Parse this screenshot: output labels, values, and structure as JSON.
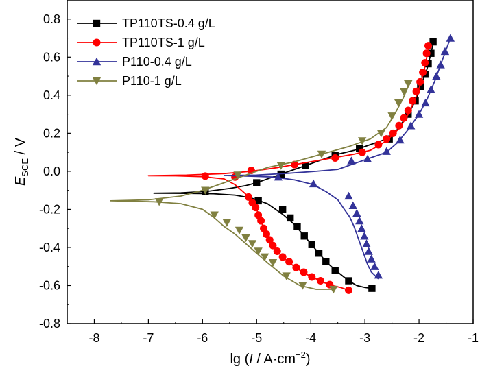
{
  "chart_data": {
    "type": "line",
    "xlabel": {
      "prefix": "lg (",
      "var": "I",
      "mid": " / A·cm",
      "sup": "−2",
      "suffix": ")"
    },
    "ylabel": {
      "main": "E",
      "sub": "SCE",
      "suffix": " / V"
    },
    "xlim": [
      -8.5,
      -1
    ],
    "ylim": [
      -0.8,
      0.9
    ],
    "x_ticks": [
      -8,
      -7,
      -6,
      -5,
      -4,
      -3,
      -2,
      -1
    ],
    "y_ticks": [
      -0.8,
      -0.6,
      -0.4,
      -0.2,
      0.0,
      0.2,
      0.4,
      0.6,
      0.8
    ],
    "x_tick_labels": [
      "-8",
      "-7",
      "-6",
      "-5",
      "-4",
      "-3",
      "-2",
      "-1"
    ],
    "y_tick_labels": [
      "-0.8",
      "-0.6",
      "-0.4",
      "-0.2",
      "0.0",
      "0.2",
      "0.4",
      "0.6",
      "0.8"
    ],
    "grid": false,
    "legend_position": "top-left",
    "series": [
      {
        "name": "TP110TS-0.4 g/L",
        "color": "#000000",
        "marker": "square",
        "points": [
          [
            -2.87,
            -0.615
          ],
          [
            -3.0,
            -0.61
          ],
          [
            -3.15,
            -0.6
          ],
          [
            -3.3,
            -0.575
          ],
          [
            -3.5,
            -0.53
          ],
          [
            -3.7,
            -0.48
          ],
          [
            -3.85,
            -0.43
          ],
          [
            -4.0,
            -0.38
          ],
          [
            -4.15,
            -0.33
          ],
          [
            -4.3,
            -0.28
          ],
          [
            -4.5,
            -0.23
          ],
          [
            -4.65,
            -0.2
          ],
          [
            -4.8,
            -0.17
          ],
          [
            -4.95,
            -0.155
          ],
          [
            -5.1,
            -0.14
          ],
          [
            -5.4,
            -0.125
          ],
          [
            -5.8,
            -0.118
          ],
          [
            -6.3,
            -0.116
          ],
          [
            -6.9,
            -0.115
          ],
          [
            -6.4,
            -0.113
          ],
          [
            -5.9,
            -0.105
          ],
          [
            -5.5,
            -0.09
          ],
          [
            -5.2,
            -0.075
          ],
          [
            -5.0,
            -0.06
          ],
          [
            -4.7,
            -0.03
          ],
          [
            -4.4,
            0.0
          ],
          [
            -4.1,
            0.03
          ],
          [
            -3.8,
            0.06
          ],
          [
            -3.5,
            0.09
          ],
          [
            -3.2,
            0.11
          ],
          [
            -2.9,
            0.14
          ],
          [
            -2.6,
            0.17
          ],
          [
            -2.4,
            0.22
          ],
          [
            -2.2,
            0.3
          ],
          [
            -2.05,
            0.38
          ],
          [
            -1.95,
            0.46
          ],
          [
            -1.85,
            0.54
          ],
          [
            -1.78,
            0.62
          ],
          [
            -1.73,
            0.68
          ]
        ],
        "marker_points": [
          [
            -2.87,
            -0.615
          ],
          [
            -3.3,
            -0.575
          ],
          [
            -3.55,
            -0.52
          ],
          [
            -3.72,
            -0.475
          ],
          [
            -3.85,
            -0.43
          ],
          [
            -3.98,
            -0.385
          ],
          [
            -4.12,
            -0.34
          ],
          [
            -4.25,
            -0.29
          ],
          [
            -4.38,
            -0.245
          ],
          [
            -4.52,
            -0.2
          ],
          [
            -4.97,
            -0.155
          ],
          [
            -5.95,
            -0.105
          ],
          [
            -5.0,
            -0.06
          ],
          [
            -4.55,
            -0.015
          ],
          [
            -4.1,
            0.03
          ],
          [
            -3.55,
            0.085
          ],
          [
            -3.1,
            0.12
          ],
          [
            -2.55,
            0.17
          ],
          [
            -2.2,
            0.3
          ],
          [
            -2.07,
            0.37
          ],
          [
            -1.97,
            0.445
          ],
          [
            -1.89,
            0.51
          ],
          [
            -1.83,
            0.565
          ],
          [
            -1.78,
            0.62
          ],
          [
            -1.74,
            0.68
          ]
        ]
      },
      {
        "name": "TP110TS-1 g/L",
        "color": "#ff0000",
        "marker": "circle",
        "points": [
          [
            -3.3,
            -0.625
          ],
          [
            -3.45,
            -0.61
          ],
          [
            -3.6,
            -0.6
          ],
          [
            -3.75,
            -0.585
          ],
          [
            -3.9,
            -0.565
          ],
          [
            -4.05,
            -0.545
          ],
          [
            -4.2,
            -0.52
          ],
          [
            -4.35,
            -0.49
          ],
          [
            -4.5,
            -0.455
          ],
          [
            -4.62,
            -0.42
          ],
          [
            -4.72,
            -0.38
          ],
          [
            -4.8,
            -0.34
          ],
          [
            -4.87,
            -0.3
          ],
          [
            -4.93,
            -0.25
          ],
          [
            -5.0,
            -0.2
          ],
          [
            -5.08,
            -0.16
          ],
          [
            -5.2,
            -0.12
          ],
          [
            -5.4,
            -0.07
          ],
          [
            -5.6,
            -0.04
          ],
          [
            -6.0,
            -0.028
          ],
          [
            -6.5,
            -0.024
          ],
          [
            -7.0,
            -0.023
          ],
          [
            -6.3,
            -0.02
          ],
          [
            -5.6,
            -0.012
          ],
          [
            -5.1,
            0.0
          ],
          [
            -4.6,
            0.02
          ],
          [
            -4.1,
            0.045
          ],
          [
            -3.6,
            0.07
          ],
          [
            -3.2,
            0.09
          ],
          [
            -2.9,
            0.11
          ],
          [
            -2.6,
            0.16
          ],
          [
            -2.35,
            0.23
          ],
          [
            -2.2,
            0.3
          ],
          [
            -2.07,
            0.38
          ],
          [
            -1.97,
            0.46
          ],
          [
            -1.9,
            0.54
          ],
          [
            -1.85,
            0.61
          ],
          [
            -1.82,
            0.66
          ]
        ],
        "marker_points": [
          [
            -3.3,
            -0.625
          ],
          [
            -3.65,
            -0.595
          ],
          [
            -3.82,
            -0.575
          ],
          [
            -3.98,
            -0.555
          ],
          [
            -4.13,
            -0.53
          ],
          [
            -4.27,
            -0.505
          ],
          [
            -4.4,
            -0.475
          ],
          [
            -4.52,
            -0.45
          ],
          [
            -4.62,
            -0.42
          ],
          [
            -4.7,
            -0.39
          ],
          [
            -4.76,
            -0.36
          ],
          [
            -4.82,
            -0.33
          ],
          [
            -4.87,
            -0.3
          ],
          [
            -4.92,
            -0.26
          ],
          [
            -4.97,
            -0.23
          ],
          [
            -5.02,
            -0.19
          ],
          [
            -5.08,
            -0.165
          ],
          [
            -5.15,
            -0.135
          ],
          [
            -5.4,
            -0.03
          ],
          [
            -5.95,
            -0.025
          ],
          [
            -5.1,
            0.005
          ],
          [
            -4.3,
            0.035
          ],
          [
            -3.55,
            0.07
          ],
          [
            -3.05,
            0.1
          ],
          [
            -2.75,
            0.14
          ],
          [
            -2.6,
            0.17
          ],
          [
            -2.48,
            0.2
          ],
          [
            -2.37,
            0.24
          ],
          [
            -2.28,
            0.28
          ],
          [
            -2.2,
            0.32
          ],
          [
            -2.12,
            0.37
          ],
          [
            -2.05,
            0.42
          ],
          [
            -1.98,
            0.47
          ],
          [
            -1.93,
            0.52
          ],
          [
            -1.89,
            0.57
          ],
          [
            -1.86,
            0.62
          ],
          [
            -1.83,
            0.66
          ]
        ]
      },
      {
        "name": "P110-0.4 g/L",
        "color": "#333399",
        "marker": "triangle-up",
        "points": [
          [
            -2.75,
            -0.565
          ],
          [
            -2.88,
            -0.53
          ],
          [
            -2.95,
            -0.49
          ],
          [
            -3.0,
            -0.45
          ],
          [
            -3.05,
            -0.41
          ],
          [
            -3.1,
            -0.37
          ],
          [
            -3.15,
            -0.33
          ],
          [
            -3.2,
            -0.29
          ],
          [
            -3.28,
            -0.24
          ],
          [
            -3.38,
            -0.2
          ],
          [
            -3.5,
            -0.15
          ],
          [
            -3.7,
            -0.11
          ],
          [
            -3.95,
            -0.07
          ],
          [
            -4.3,
            -0.045
          ],
          [
            -4.7,
            -0.03
          ],
          [
            -5.2,
            -0.025
          ],
          [
            -5.6,
            -0.022
          ],
          [
            -5.0,
            -0.02
          ],
          [
            -4.4,
            -0.01
          ],
          [
            -3.9,
            0.0
          ],
          [
            -3.5,
            0.01
          ],
          [
            -3.2,
            0.04
          ],
          [
            -2.9,
            0.07
          ],
          [
            -2.6,
            0.1
          ],
          [
            -2.4,
            0.15
          ],
          [
            -2.2,
            0.22
          ],
          [
            -2.0,
            0.3
          ],
          [
            -1.85,
            0.38
          ],
          [
            -1.7,
            0.48
          ],
          [
            -1.55,
            0.6
          ],
          [
            -1.42,
            0.7
          ]
        ],
        "marker_points": [
          [
            -2.75,
            -0.545
          ],
          [
            -2.82,
            -0.5
          ],
          [
            -2.88,
            -0.46
          ],
          [
            -2.93,
            -0.42
          ],
          [
            -2.97,
            -0.38
          ],
          [
            -3.01,
            -0.34
          ],
          [
            -3.06,
            -0.3
          ],
          [
            -3.1,
            -0.26
          ],
          [
            -3.15,
            -0.22
          ],
          [
            -3.22,
            -0.18
          ],
          [
            -3.3,
            -0.13
          ],
          [
            -3.95,
            -0.065
          ],
          [
            -4.6,
            -0.03
          ],
          [
            -3.25,
            0.055
          ],
          [
            -2.95,
            0.065
          ],
          [
            -2.6,
            0.105
          ],
          [
            -2.35,
            0.165
          ],
          [
            -2.15,
            0.24
          ],
          [
            -2.0,
            0.3
          ],
          [
            -1.88,
            0.36
          ],
          [
            -1.78,
            0.43
          ],
          [
            -1.68,
            0.5
          ],
          [
            -1.6,
            0.56
          ],
          [
            -1.52,
            0.63
          ],
          [
            -1.42,
            0.7
          ]
        ]
      },
      {
        "name": "P110-1 g/L",
        "color": "#808040",
        "marker": "triangle-down",
        "points": [
          [
            -3.6,
            -0.62
          ],
          [
            -3.9,
            -0.62
          ],
          [
            -4.2,
            -0.6
          ],
          [
            -4.5,
            -0.55
          ],
          [
            -4.8,
            -0.48
          ],
          [
            -5.0,
            -0.43
          ],
          [
            -5.2,
            -0.38
          ],
          [
            -5.4,
            -0.33
          ],
          [
            -5.6,
            -0.29
          ],
          [
            -5.8,
            -0.24
          ],
          [
            -6.0,
            -0.2
          ],
          [
            -6.4,
            -0.17
          ],
          [
            -6.9,
            -0.16
          ],
          [
            -7.7,
            -0.155
          ],
          [
            -7.0,
            -0.15
          ],
          [
            -6.4,
            -0.13
          ],
          [
            -6.0,
            -0.1
          ],
          [
            -5.6,
            -0.06
          ],
          [
            -5.2,
            -0.02
          ],
          [
            -4.8,
            0.02
          ],
          [
            -4.3,
            0.05
          ],
          [
            -3.8,
            0.09
          ],
          [
            -3.3,
            0.13
          ],
          [
            -2.9,
            0.17
          ],
          [
            -2.6,
            0.23
          ],
          [
            -2.45,
            0.3
          ],
          [
            -2.3,
            0.38
          ],
          [
            -2.18,
            0.46
          ]
        ],
        "marker_points": [
          [
            -3.58,
            -0.62
          ],
          [
            -4.15,
            -0.6
          ],
          [
            -4.45,
            -0.55
          ],
          [
            -4.7,
            -0.48
          ],
          [
            -4.85,
            -0.45
          ],
          [
            -4.97,
            -0.42
          ],
          [
            -5.08,
            -0.38
          ],
          [
            -5.2,
            -0.35
          ],
          [
            -5.32,
            -0.31
          ],
          [
            -5.55,
            -0.27
          ],
          [
            -5.78,
            -0.23
          ],
          [
            -6.8,
            -0.16
          ],
          [
            -5.95,
            -0.1
          ],
          [
            -5.35,
            -0.02
          ],
          [
            -4.55,
            0.03
          ],
          [
            -3.8,
            0.09
          ],
          [
            -3.05,
            0.16
          ],
          [
            -2.7,
            0.2
          ],
          [
            -2.5,
            0.29
          ],
          [
            -2.38,
            0.36
          ],
          [
            -2.28,
            0.42
          ],
          [
            -2.2,
            0.46
          ]
        ]
      }
    ]
  }
}
